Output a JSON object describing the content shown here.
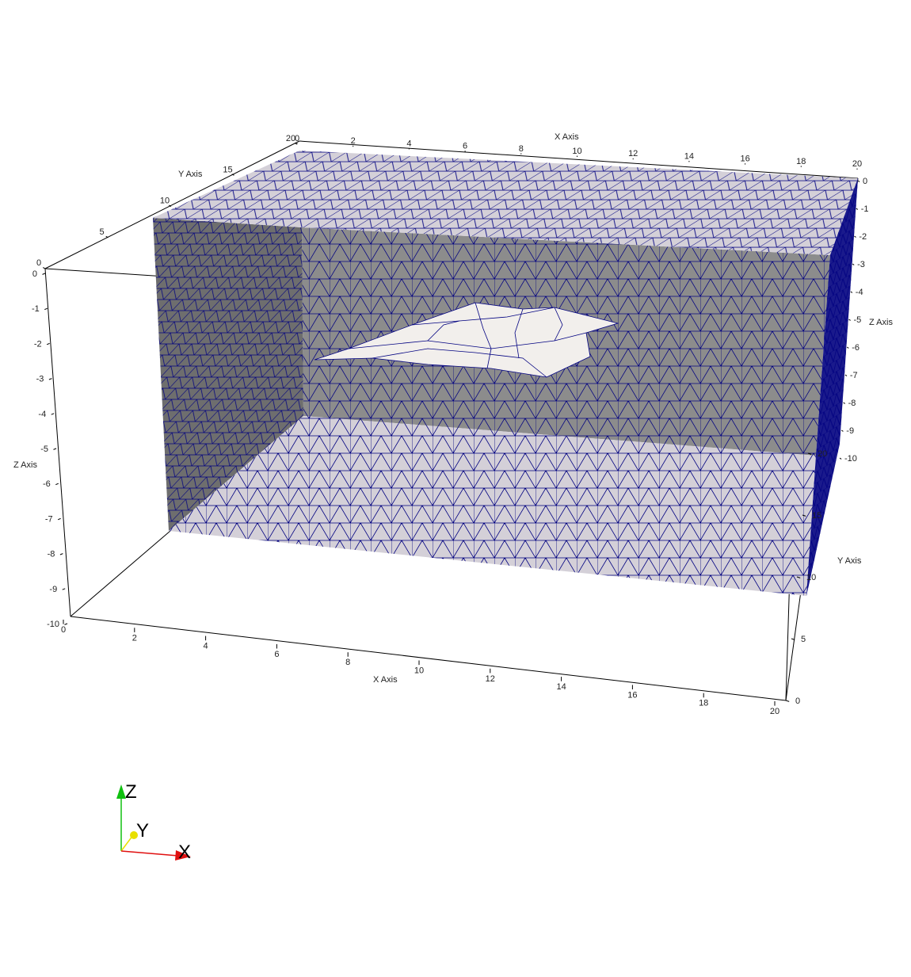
{
  "axes": {
    "x_title": "X Axis",
    "y_title": "Y Axis",
    "z_title": "Z Axis",
    "x_front_ticks": [
      "0",
      "2",
      "4",
      "6",
      "8",
      "10",
      "12",
      "14",
      "16",
      "18",
      "20"
    ],
    "x_top_ticks": [
      "0",
      "2",
      "4",
      "6",
      "8",
      "10",
      "12",
      "14",
      "16",
      "18",
      "20"
    ],
    "y_top_ticks": [
      "20",
      "15",
      "10",
      "5",
      "0"
    ],
    "y_right_ticks": [
      "20",
      "15",
      "10",
      "5",
      "0"
    ],
    "z_left_ticks": [
      "0",
      "-1",
      "-2",
      "-3",
      "-4",
      "-5",
      "-6",
      "-7",
      "-8",
      "-9",
      "-10"
    ],
    "z_right_ticks": [
      "0",
      "-1",
      "-2",
      "-3",
      "-4",
      "-5",
      "-6",
      "-7",
      "-8",
      "-9",
      "-10"
    ]
  },
  "orientation": {
    "x_label": "X",
    "y_label": "Y",
    "z_label": "Z",
    "x_color": "#e01010",
    "y_color": "#e8e000",
    "z_color": "#10c010"
  },
  "colors": {
    "mesh_edge": "#000080",
    "surface_light": "#d4d0d8",
    "surface_dark": "#8c8c8c",
    "surface_side": "#6e6e6e",
    "inclusion": "#f2efec"
  }
}
